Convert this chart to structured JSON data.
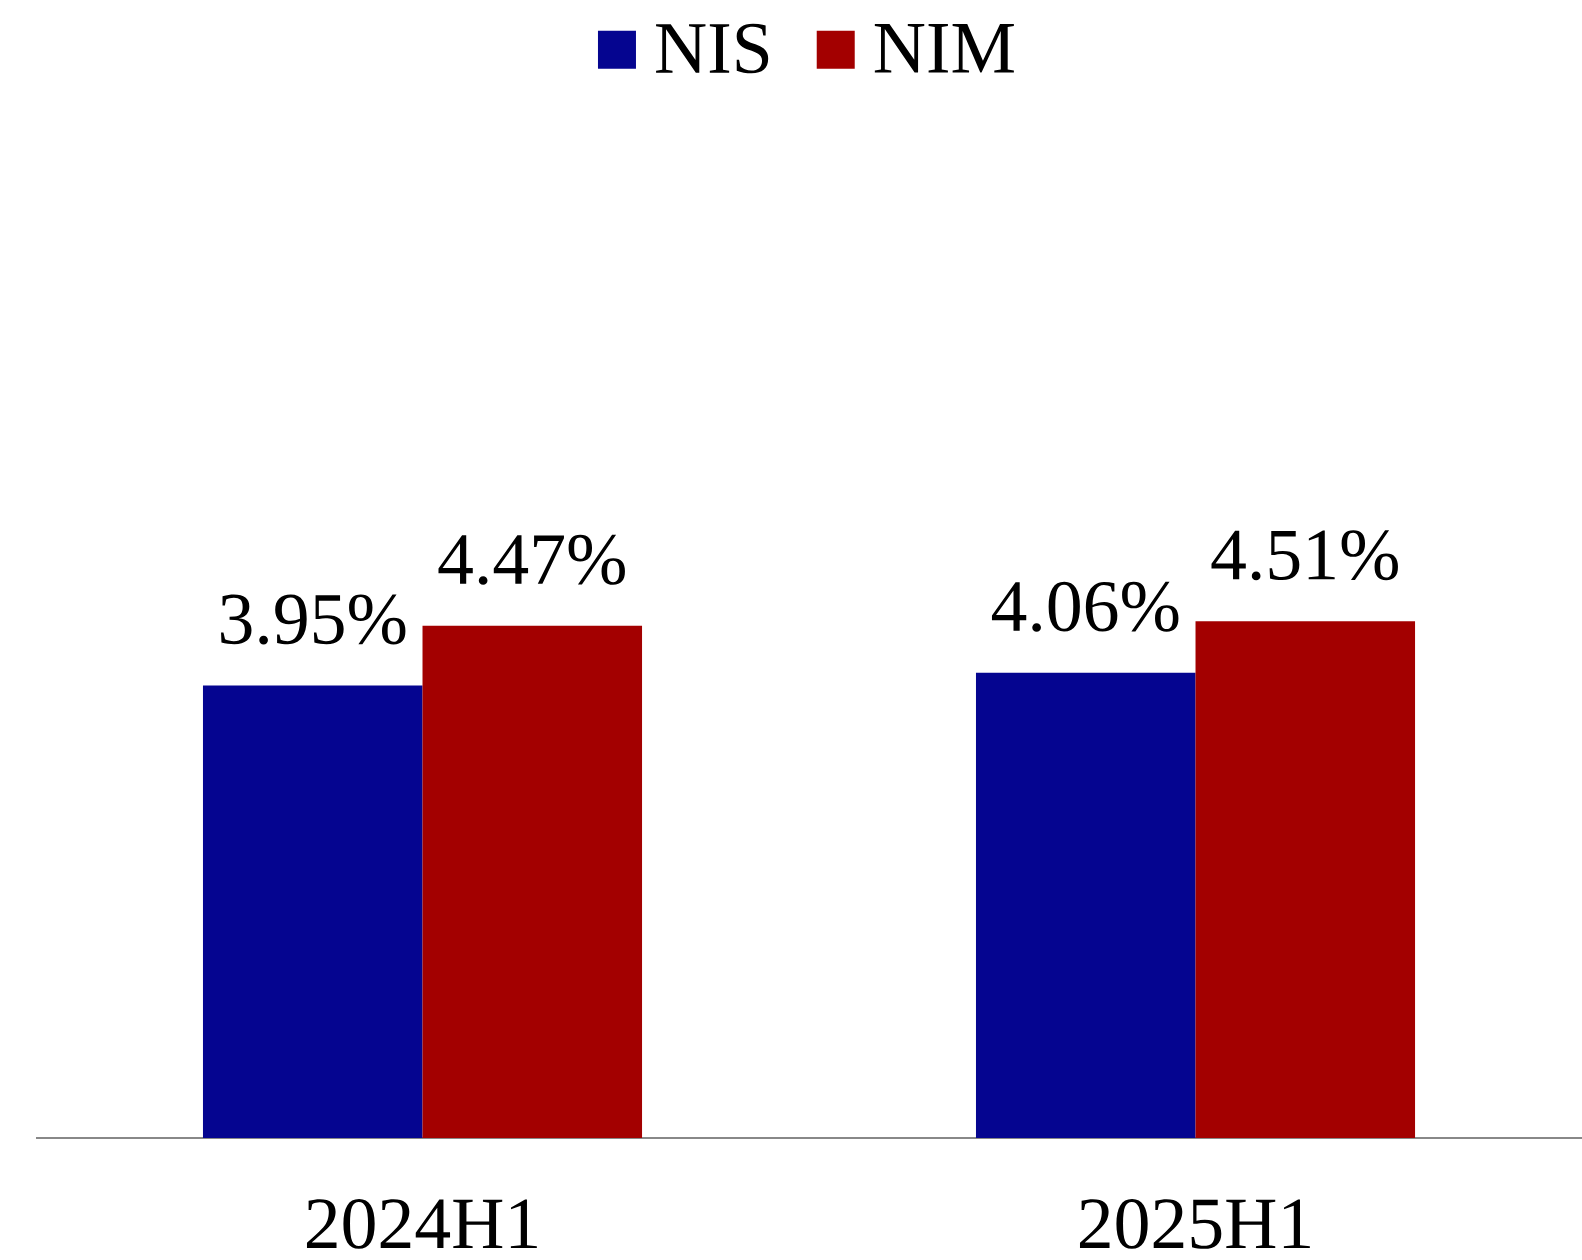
{
  "chart_data": {
    "type": "bar",
    "categories": [
      "2024H1",
      "2025H1"
    ],
    "series": [
      {
        "name": "NIS",
        "color": "#050590",
        "values": [
          3.95,
          4.06
        ],
        "value_labels": [
          "3.95%",
          "4.06%"
        ]
      },
      {
        "name": "NIM",
        "color": "#a30000",
        "values": [
          4.47,
          4.51
        ],
        "value_labels": [
          "4.47%",
          "4.51%"
        ]
      }
    ],
    "legend": "top",
    "tick_labels": "x"
  }
}
